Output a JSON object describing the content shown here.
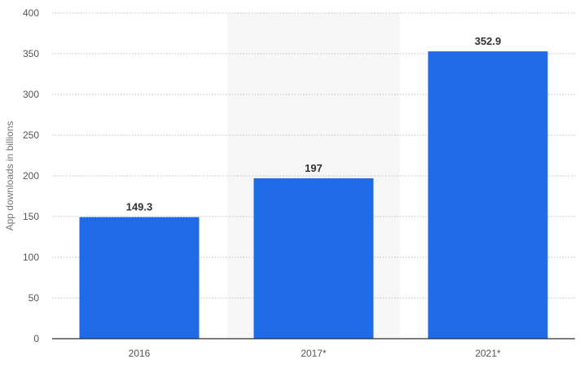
{
  "chart_data": {
    "type": "bar",
    "categories": [
      "2016",
      "2017*",
      "2021*"
    ],
    "values": [
      149.3,
      197,
      352.9
    ],
    "value_labels": [
      "149.3",
      "197",
      "352.9"
    ],
    "highlighted_category": "2017*",
    "title": "",
    "xlabel": "",
    "ylabel": "App downloads in billions",
    "ylim": [
      0,
      400
    ],
    "yticks": [
      0,
      50,
      100,
      150,
      200,
      250,
      300,
      350,
      400
    ],
    "grid": true,
    "legend": "none",
    "colors": {
      "bar": "#1f6ae6",
      "highlight_band": "#f7f7f7",
      "grid": "#bfbfbf",
      "axis": "#333333"
    }
  }
}
